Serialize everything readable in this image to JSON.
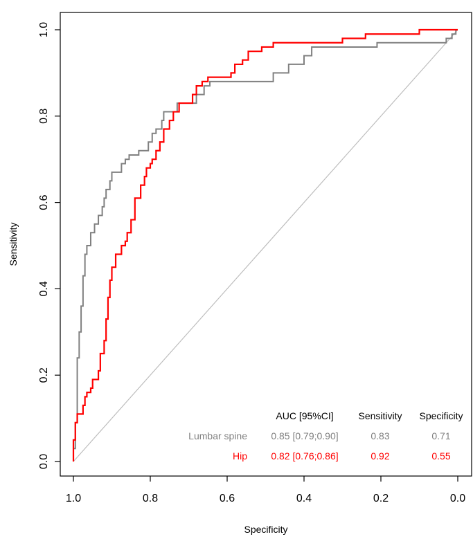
{
  "chart_data": {
    "type": "line",
    "title": "",
    "xlabel": "Specificity",
    "ylabel": "Sensitivity",
    "xlim": [
      1.0,
      0.0
    ],
    "ylim": [
      0.0,
      1.0
    ],
    "x_reversed": true,
    "grid": false,
    "x_ticks": [
      "1.0",
      "0.8",
      "0.6",
      "0.4",
      "0.2",
      "0.0"
    ],
    "y_ticks": [
      "0.0",
      "0.2",
      "0.4",
      "0.6",
      "0.8",
      "1.0"
    ],
    "reference_line": {
      "from": [
        1.0,
        0.0
      ],
      "to": [
        0.0,
        1.0
      ],
      "color": "#bdbdbd"
    },
    "series": [
      {
        "name": "Lumbar spine",
        "color": "#808080",
        "auc": "0.85 [0.79;0.90]",
        "sensitivity": "0.83",
        "specificity": "0.71",
        "points": [
          [
            1.0,
            0.0
          ],
          [
            1.0,
            0.03
          ],
          [
            0.995,
            0.03
          ],
          [
            0.995,
            0.09
          ],
          [
            0.99,
            0.09
          ],
          [
            0.99,
            0.24
          ],
          [
            0.985,
            0.24
          ],
          [
            0.985,
            0.3
          ],
          [
            0.98,
            0.3
          ],
          [
            0.98,
            0.36
          ],
          [
            0.975,
            0.36
          ],
          [
            0.975,
            0.43
          ],
          [
            0.97,
            0.43
          ],
          [
            0.97,
            0.48
          ],
          [
            0.965,
            0.48
          ],
          [
            0.965,
            0.5
          ],
          [
            0.955,
            0.5
          ],
          [
            0.955,
            0.53
          ],
          [
            0.945,
            0.53
          ],
          [
            0.945,
            0.55
          ],
          [
            0.935,
            0.55
          ],
          [
            0.935,
            0.57
          ],
          [
            0.925,
            0.57
          ],
          [
            0.925,
            0.59
          ],
          [
            0.92,
            0.59
          ],
          [
            0.92,
            0.61
          ],
          [
            0.915,
            0.61
          ],
          [
            0.915,
            0.63
          ],
          [
            0.905,
            0.63
          ],
          [
            0.905,
            0.65
          ],
          [
            0.9,
            0.65
          ],
          [
            0.9,
            0.67
          ],
          [
            0.89,
            0.67
          ],
          [
            0.875,
            0.67
          ],
          [
            0.875,
            0.69
          ],
          [
            0.865,
            0.69
          ],
          [
            0.865,
            0.7
          ],
          [
            0.855,
            0.7
          ],
          [
            0.855,
            0.71
          ],
          [
            0.83,
            0.71
          ],
          [
            0.83,
            0.72
          ],
          [
            0.805,
            0.72
          ],
          [
            0.805,
            0.74
          ],
          [
            0.795,
            0.74
          ],
          [
            0.795,
            0.76
          ],
          [
            0.785,
            0.76
          ],
          [
            0.785,
            0.77
          ],
          [
            0.77,
            0.77
          ],
          [
            0.77,
            0.79
          ],
          [
            0.765,
            0.79
          ],
          [
            0.765,
            0.81
          ],
          [
            0.73,
            0.81
          ],
          [
            0.73,
            0.83
          ],
          [
            0.68,
            0.83
          ],
          [
            0.68,
            0.85
          ],
          [
            0.66,
            0.85
          ],
          [
            0.66,
            0.87
          ],
          [
            0.645,
            0.87
          ],
          [
            0.645,
            0.88
          ],
          [
            0.57,
            0.88
          ],
          [
            0.48,
            0.88
          ],
          [
            0.48,
            0.9
          ],
          [
            0.44,
            0.9
          ],
          [
            0.44,
            0.92
          ],
          [
            0.4,
            0.92
          ],
          [
            0.4,
            0.94
          ],
          [
            0.38,
            0.94
          ],
          [
            0.38,
            0.96
          ],
          [
            0.28,
            0.96
          ],
          [
            0.21,
            0.96
          ],
          [
            0.21,
            0.97
          ],
          [
            0.03,
            0.97
          ],
          [
            0.03,
            0.98
          ],
          [
            0.015,
            0.98
          ],
          [
            0.015,
            0.99
          ],
          [
            0.005,
            0.99
          ],
          [
            0.005,
            1.0
          ],
          [
            0.0,
            1.0
          ]
        ]
      },
      {
        "name": "Hip",
        "color": "#ff0000",
        "auc": "0.82 [0.76;0.86]",
        "sensitivity": "0.92",
        "specificity": "0.55",
        "points": [
          [
            1.0,
            0.0
          ],
          [
            1.0,
            0.05
          ],
          [
            0.995,
            0.05
          ],
          [
            0.995,
            0.09
          ],
          [
            0.99,
            0.09
          ],
          [
            0.99,
            0.11
          ],
          [
            0.975,
            0.11
          ],
          [
            0.975,
            0.13
          ],
          [
            0.97,
            0.13
          ],
          [
            0.97,
            0.15
          ],
          [
            0.965,
            0.15
          ],
          [
            0.965,
            0.16
          ],
          [
            0.955,
            0.16
          ],
          [
            0.955,
            0.17
          ],
          [
            0.95,
            0.17
          ],
          [
            0.95,
            0.19
          ],
          [
            0.935,
            0.19
          ],
          [
            0.935,
            0.21
          ],
          [
            0.93,
            0.21
          ],
          [
            0.93,
            0.25
          ],
          [
            0.92,
            0.25
          ],
          [
            0.92,
            0.28
          ],
          [
            0.915,
            0.28
          ],
          [
            0.915,
            0.33
          ],
          [
            0.91,
            0.33
          ],
          [
            0.91,
            0.38
          ],
          [
            0.905,
            0.38
          ],
          [
            0.905,
            0.42
          ],
          [
            0.9,
            0.42
          ],
          [
            0.9,
            0.45
          ],
          [
            0.89,
            0.45
          ],
          [
            0.89,
            0.48
          ],
          [
            0.875,
            0.48
          ],
          [
            0.875,
            0.5
          ],
          [
            0.865,
            0.5
          ],
          [
            0.865,
            0.51
          ],
          [
            0.86,
            0.51
          ],
          [
            0.86,
            0.53
          ],
          [
            0.85,
            0.53
          ],
          [
            0.85,
            0.56
          ],
          [
            0.84,
            0.56
          ],
          [
            0.84,
            0.61
          ],
          [
            0.825,
            0.61
          ],
          [
            0.825,
            0.64
          ],
          [
            0.815,
            0.64
          ],
          [
            0.815,
            0.66
          ],
          [
            0.81,
            0.66
          ],
          [
            0.81,
            0.68
          ],
          [
            0.8,
            0.68
          ],
          [
            0.8,
            0.69
          ],
          [
            0.795,
            0.69
          ],
          [
            0.795,
            0.7
          ],
          [
            0.785,
            0.7
          ],
          [
            0.785,
            0.72
          ],
          [
            0.775,
            0.72
          ],
          [
            0.775,
            0.74
          ],
          [
            0.765,
            0.74
          ],
          [
            0.765,
            0.77
          ],
          [
            0.75,
            0.77
          ],
          [
            0.75,
            0.79
          ],
          [
            0.74,
            0.79
          ],
          [
            0.74,
            0.81
          ],
          [
            0.725,
            0.81
          ],
          [
            0.725,
            0.83
          ],
          [
            0.69,
            0.83
          ],
          [
            0.69,
            0.85
          ],
          [
            0.68,
            0.85
          ],
          [
            0.68,
            0.87
          ],
          [
            0.665,
            0.87
          ],
          [
            0.665,
            0.88
          ],
          [
            0.65,
            0.88
          ],
          [
            0.65,
            0.89
          ],
          [
            0.59,
            0.89
          ],
          [
            0.59,
            0.9
          ],
          [
            0.58,
            0.9
          ],
          [
            0.58,
            0.92
          ],
          [
            0.56,
            0.92
          ],
          [
            0.56,
            0.93
          ],
          [
            0.545,
            0.93
          ],
          [
            0.545,
            0.95
          ],
          [
            0.51,
            0.95
          ],
          [
            0.51,
            0.96
          ],
          [
            0.48,
            0.96
          ],
          [
            0.48,
            0.97
          ],
          [
            0.3,
            0.97
          ],
          [
            0.3,
            0.98
          ],
          [
            0.24,
            0.98
          ],
          [
            0.24,
            0.99
          ],
          [
            0.1,
            0.99
          ],
          [
            0.1,
            1.0
          ],
          [
            0.0,
            1.0
          ]
        ]
      }
    ],
    "legend": {
      "placement": "bottom-right",
      "headers": {
        "auc": "AUC [95%CI]",
        "sensitivity": "Sensitivity",
        "specificity": "Specificity"
      }
    }
  }
}
